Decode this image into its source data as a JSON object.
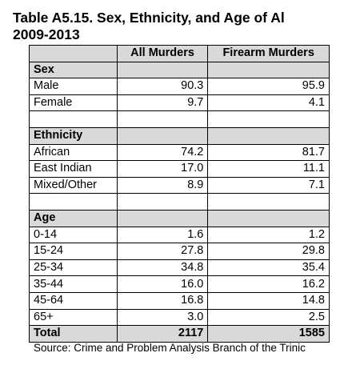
{
  "title_line1": "Table A5.15. Sex, Ethnicity, and Age of Al",
  "title_line2": "2009-2013",
  "headers": [
    "",
    "All Murders",
    "Firearm Murders"
  ],
  "sex": {
    "label": "Sex",
    "rows": [
      {
        "label": "Male",
        "all": "90.3",
        "firearm": "95.9"
      },
      {
        "label": "Female",
        "all": "9.7",
        "firearm": "4.1"
      }
    ]
  },
  "ethnicity": {
    "label": "Ethnicity",
    "rows": [
      {
        "label": "African",
        "all": "74.2",
        "firearm": "81.7"
      },
      {
        "label": "East Indian",
        "all": "17.0",
        "firearm": "11.1"
      },
      {
        "label": "Mixed/Other",
        "all": "8.9",
        "firearm": "7.1"
      }
    ]
  },
  "age": {
    "label": "Age",
    "rows": [
      {
        "label": "0-14",
        "all": "1.6",
        "firearm": "1.2"
      },
      {
        "label": "15-24",
        "all": "27.8",
        "firearm": "29.8"
      },
      {
        "label": "25-34",
        "all": "34.8",
        "firearm": "35.4"
      },
      {
        "label": "35-44",
        "all": "16.0",
        "firearm": "16.2"
      },
      {
        "label": "45-64",
        "all": "16.8",
        "firearm": "14.8"
      },
      {
        "label": "65+",
        "all": "3.0",
        "firearm": "2.5"
      }
    ]
  },
  "total": {
    "label": "Total",
    "all": "2117",
    "firearm": "1585"
  },
  "source": "Source: Crime and Problem Analysis Branch of the Trinic"
}
